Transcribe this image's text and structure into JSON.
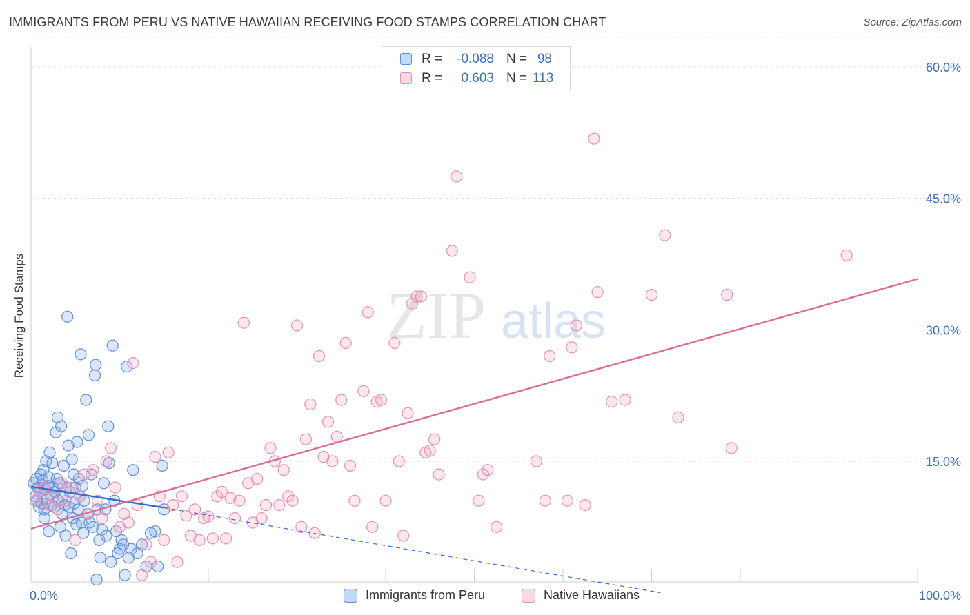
{
  "title": "IMMIGRANTS FROM PERU VS NATIVE HAWAIIAN RECEIVING FOOD STAMPS CORRELATION CHART",
  "source": "Source: ZipAtlas.com",
  "watermark": {
    "zip": "ZIP",
    "atlas": "atlas"
  },
  "colors": {
    "blue_fill": "rgba(124,170,232,0.28)",
    "blue_stroke": "#5b8fdb",
    "blue_line": "#2f6ccc",
    "pink_fill": "rgba(244,170,195,0.28)",
    "pink_stroke": "#e88fb0",
    "pink_line": "#e06a97",
    "tick_label": "#3a6fc4",
    "grid": "#dddddd"
  },
  "stats_legend": [
    {
      "r_label": "R =",
      "r_value": "-0.088",
      "n_label": "N =",
      "n_value": "98",
      "series": "blue"
    },
    {
      "r_label": "R =",
      "r_value": "0.603",
      "n_label": "N =",
      "n_value": "113",
      "series": "pink"
    }
  ],
  "chart_data": {
    "type": "scatter",
    "title": "IMMIGRANTS FROM PERU VS NATIVE HAWAIIAN RECEIVING FOOD STAMPS CORRELATION CHART",
    "xlabel": "",
    "ylabel": "Receiving Food Stamps",
    "xlim": [
      0,
      100
    ],
    "ylim": [
      0,
      60
    ],
    "x_tick_labels": [
      "0.0%",
      "100.0%"
    ],
    "y_ticks": [
      15,
      30,
      45,
      60
    ],
    "y_tick_labels": [
      "15.0%",
      "30.0%",
      "45.0%",
      "60.0%"
    ],
    "grid": true,
    "legend": [
      "Immigrants from Peru",
      "Native Hawaiians"
    ],
    "series": [
      {
        "name": "Immigrants from Peru",
        "color": "blue",
        "trend": {
          "x": [
            0,
            15
          ],
          "y": [
            12.1,
            9.7
          ],
          "dashed_extension": {
            "x": [
              15,
              71
            ],
            "y": [
              9.7,
              0
            ]
          }
        },
        "points": [
          [
            0.3,
            12.5
          ],
          [
            0.5,
            11.0
          ],
          [
            0.6,
            13.0
          ],
          [
            0.7,
            10.5
          ],
          [
            0.8,
            12.0
          ],
          [
            0.9,
            9.8
          ],
          [
            1.0,
            11.5
          ],
          [
            1.1,
            13.5
          ],
          [
            1.2,
            10.2
          ],
          [
            1.3,
            12.8
          ],
          [
            1.4,
            14.0
          ],
          [
            1.5,
            9.5
          ],
          [
            1.6,
            11.8
          ],
          [
            1.7,
            15.0
          ],
          [
            1.8,
            10.8
          ],
          [
            1.9,
            12.2
          ],
          [
            2.0,
            13.2
          ],
          [
            2.1,
            16.0
          ],
          [
            2.2,
            11.2
          ],
          [
            2.3,
            10.0
          ],
          [
            2.4,
            14.8
          ],
          [
            2.5,
            12.0
          ],
          [
            2.6,
            9.8
          ],
          [
            2.7,
            11.5
          ],
          [
            2.8,
            18.3
          ],
          [
            2.9,
            13.0
          ],
          [
            3.0,
            20.0
          ],
          [
            3.1,
            10.5
          ],
          [
            3.2,
            12.5
          ],
          [
            3.3,
            7.5
          ],
          [
            3.4,
            19.0
          ],
          [
            3.5,
            9.0
          ],
          [
            3.6,
            11.0
          ],
          [
            3.7,
            14.5
          ],
          [
            3.8,
            10.0
          ],
          [
            3.9,
            6.5
          ],
          [
            4.0,
            12.0
          ],
          [
            4.1,
            31.5
          ],
          [
            4.2,
            16.8
          ],
          [
            4.3,
            9.8
          ],
          [
            4.4,
            11.5
          ],
          [
            4.5,
            4.5
          ],
          [
            4.6,
            15.2
          ],
          [
            4.7,
            8.5
          ],
          [
            4.8,
            13.5
          ],
          [
            4.9,
            10.2
          ],
          [
            5.0,
            12.0
          ],
          [
            5.1,
            7.8
          ],
          [
            5.2,
            17.2
          ],
          [
            5.3,
            9.5
          ],
          [
            5.4,
            13.0
          ],
          [
            5.5,
            11.0
          ],
          [
            5.6,
            27.2
          ],
          [
            5.7,
            8.0
          ],
          [
            5.8,
            12.2
          ],
          [
            5.9,
            6.8
          ],
          [
            6.0,
            10.5
          ],
          [
            6.2,
            22.0
          ],
          [
            6.4,
            9.0
          ],
          [
            6.5,
            18.0
          ],
          [
            6.6,
            8.0
          ],
          [
            6.8,
            13.5
          ],
          [
            7.0,
            7.5
          ],
          [
            7.2,
            24.8
          ],
          [
            7.3,
            26.0
          ],
          [
            7.4,
            1.5
          ],
          [
            7.5,
            9.5
          ],
          [
            7.7,
            6.0
          ],
          [
            7.8,
            4.0
          ],
          [
            8.0,
            7.2
          ],
          [
            8.2,
            12.5
          ],
          [
            8.4,
            9.5
          ],
          [
            8.5,
            6.5
          ],
          [
            8.7,
            19.0
          ],
          [
            8.8,
            14.8
          ],
          [
            9.0,
            3.5
          ],
          [
            9.2,
            28.2
          ],
          [
            9.4,
            10.5
          ],
          [
            9.6,
            7.0
          ],
          [
            9.8,
            4.5
          ],
          [
            10.0,
            5.0
          ],
          [
            10.2,
            6.0
          ],
          [
            10.4,
            5.5
          ],
          [
            10.6,
            2.0
          ],
          [
            10.8,
            25.8
          ],
          [
            11.0,
            4.0
          ],
          [
            11.3,
            5.0
          ],
          [
            11.5,
            14.0
          ],
          [
            12.0,
            4.5
          ],
          [
            12.5,
            5.5
          ],
          [
            13.0,
            3.0
          ],
          [
            13.5,
            6.8
          ],
          [
            14.0,
            7.0
          ],
          [
            14.3,
            3.0
          ],
          [
            14.8,
            14.5
          ],
          [
            15.0,
            9.5
          ],
          [
            1.5,
            8.5
          ],
          [
            2.0,
            7.0
          ]
        ]
      },
      {
        "name": "Native Hawaiians",
        "color": "pink",
        "trend": {
          "x": [
            0,
            100
          ],
          "y": [
            7.3,
            35.8
          ]
        },
        "points": [
          [
            0.5,
            10.5
          ],
          [
            1.0,
            11.5
          ],
          [
            1.5,
            12.0
          ],
          [
            2.0,
            10.0
          ],
          [
            2.5,
            11.0
          ],
          [
            3.0,
            9.5
          ],
          [
            3.5,
            12.5
          ],
          [
            4.0,
            10.5
          ],
          [
            4.5,
            12.0
          ],
          [
            5.0,
            6.0
          ],
          [
            5.5,
            11.0
          ],
          [
            6.0,
            13.5
          ],
          [
            6.5,
            9.0
          ],
          [
            7.0,
            14.0
          ],
          [
            7.5,
            10.5
          ],
          [
            8.0,
            8.5
          ],
          [
            8.5,
            15.0
          ],
          [
            9.0,
            16.5
          ],
          [
            9.5,
            12.0
          ],
          [
            10.0,
            7.5
          ],
          [
            10.5,
            9.0
          ],
          [
            11.0,
            8.0
          ],
          [
            11.5,
            26.2
          ],
          [
            12.0,
            10.0
          ],
          [
            12.5,
            2.0
          ],
          [
            13.0,
            5.5
          ],
          [
            13.5,
            3.5
          ],
          [
            14.0,
            15.5
          ],
          [
            14.5,
            11.0
          ],
          [
            15.0,
            6.0
          ],
          [
            15.5,
            16.0
          ],
          [
            16.0,
            10.0
          ],
          [
            16.5,
            3.5
          ],
          [
            17.0,
            11.0
          ],
          [
            17.5,
            8.8
          ],
          [
            18.0,
            6.5
          ],
          [
            18.5,
            9.5
          ],
          [
            19.0,
            6.0
          ],
          [
            19.5,
            8.5
          ],
          [
            20.0,
            8.7
          ],
          [
            20.5,
            6.2
          ],
          [
            21.0,
            11.0
          ],
          [
            21.5,
            11.5
          ],
          [
            22.0,
            6.2
          ],
          [
            22.5,
            10.8
          ],
          [
            23.0,
            8.5
          ],
          [
            23.5,
            10.5
          ],
          [
            24.0,
            30.8
          ],
          [
            24.5,
            12.5
          ],
          [
            25.0,
            8.0
          ],
          [
            25.5,
            13.0
          ],
          [
            26.0,
            8.5
          ],
          [
            26.5,
            10.0
          ],
          [
            27.0,
            16.5
          ],
          [
            27.5,
            15.0
          ],
          [
            28.0,
            10.0
          ],
          [
            28.5,
            14.0
          ],
          [
            29.0,
            11.0
          ],
          [
            29.5,
            10.5
          ],
          [
            30.0,
            30.5
          ],
          [
            30.5,
            7.5
          ],
          [
            31.0,
            17.5
          ],
          [
            31.5,
            21.5
          ],
          [
            32.0,
            6.8
          ],
          [
            32.5,
            27.0
          ],
          [
            33.0,
            15.5
          ],
          [
            33.5,
            19.5
          ],
          [
            34.0,
            15.0
          ],
          [
            34.5,
            17.8
          ],
          [
            35.0,
            22.0
          ],
          [
            35.5,
            28.5
          ],
          [
            36.0,
            14.5
          ],
          [
            36.5,
            10.5
          ],
          [
            37.5,
            23.0
          ],
          [
            38.0,
            32.0
          ],
          [
            38.5,
            7.5
          ],
          [
            39.0,
            21.8
          ],
          [
            39.5,
            22.0
          ],
          [
            40.0,
            10.5
          ],
          [
            41.0,
            28.5
          ],
          [
            41.5,
            15.0
          ],
          [
            42.0,
            6.5
          ],
          [
            42.5,
            20.5
          ],
          [
            43.0,
            33.0
          ],
          [
            43.5,
            33.8
          ],
          [
            44.0,
            33.8
          ],
          [
            44.5,
            16.0
          ],
          [
            45.0,
            16.2
          ],
          [
            45.5,
            17.5
          ],
          [
            46.0,
            13.5
          ],
          [
            47.5,
            39.0
          ],
          [
            48.0,
            47.5
          ],
          [
            49.5,
            36.0
          ],
          [
            50.5,
            10.5
          ],
          [
            51.0,
            13.5
          ],
          [
            51.5,
            14.0
          ],
          [
            52.5,
            7.5
          ],
          [
            57.0,
            15.0
          ],
          [
            58.0,
            10.5
          ],
          [
            58.5,
            27.0
          ],
          [
            60.5,
            10.5
          ],
          [
            61.0,
            28.0
          ],
          [
            61.5,
            30.5
          ],
          [
            62.5,
            10.0
          ],
          [
            63.5,
            51.8
          ],
          [
            63.9,
            34.3
          ],
          [
            65.5,
            21.8
          ],
          [
            67.0,
            22.0
          ],
          [
            70.0,
            34.0
          ],
          [
            71.5,
            40.8
          ],
          [
            73.0,
            20.0
          ],
          [
            78.5,
            34.0
          ],
          [
            79.0,
            16.5
          ],
          [
            92.0,
            38.5
          ]
        ]
      }
    ]
  },
  "bottom_legend": [
    {
      "label": "Immigrants from Peru",
      "series": "blue"
    },
    {
      "label": "Native Hawaiians",
      "series": "pink"
    }
  ]
}
